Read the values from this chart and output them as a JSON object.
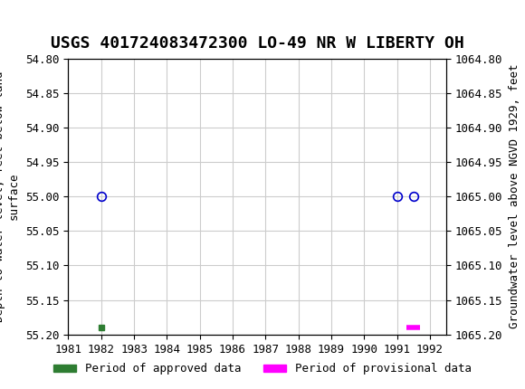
{
  "title": "USGS 401724083472300 LO-49 NR W LIBERTY OH",
  "ylabel_left": "Depth to water level, feet below land\nsurface",
  "ylabel_right": "Groundwater level above NGVD 1929, feet",
  "xlim": [
    1981,
    1992.5
  ],
  "ylim_left": [
    54.8,
    55.2
  ],
  "ylim_right": [
    1064.8,
    1065.2
  ],
  "xticks": [
    1981,
    1982,
    1983,
    1984,
    1985,
    1986,
    1987,
    1988,
    1989,
    1990,
    1991,
    1992
  ],
  "yticks_left": [
    54.8,
    54.85,
    54.9,
    54.95,
    55.0,
    55.05,
    55.1,
    55.15,
    55.2
  ],
  "yticks_right": [
    1065.2,
    1065.15,
    1065.1,
    1065.05,
    1065.0,
    1064.95,
    1064.9,
    1064.85,
    1064.8
  ],
  "circle_points_x": [
    1982.0,
    1991.0,
    1991.5
  ],
  "circle_points_y": [
    55.0,
    55.0,
    55.0
  ],
  "green_bar_x": 1982.0,
  "green_bar_y": 55.19,
  "pink_bar_x1": 1991.3,
  "pink_bar_x2": 1991.7,
  "pink_bar_y": 55.19,
  "circle_color": "#0000cc",
  "green_color": "#2e7d32",
  "pink_color": "#ff00ff",
  "bg_color": "#ffffff",
  "header_color": "#006633",
  "grid_color": "#cccccc",
  "title_fontsize": 13,
  "axis_label_fontsize": 9,
  "tick_fontsize": 9,
  "legend_fontsize": 9
}
